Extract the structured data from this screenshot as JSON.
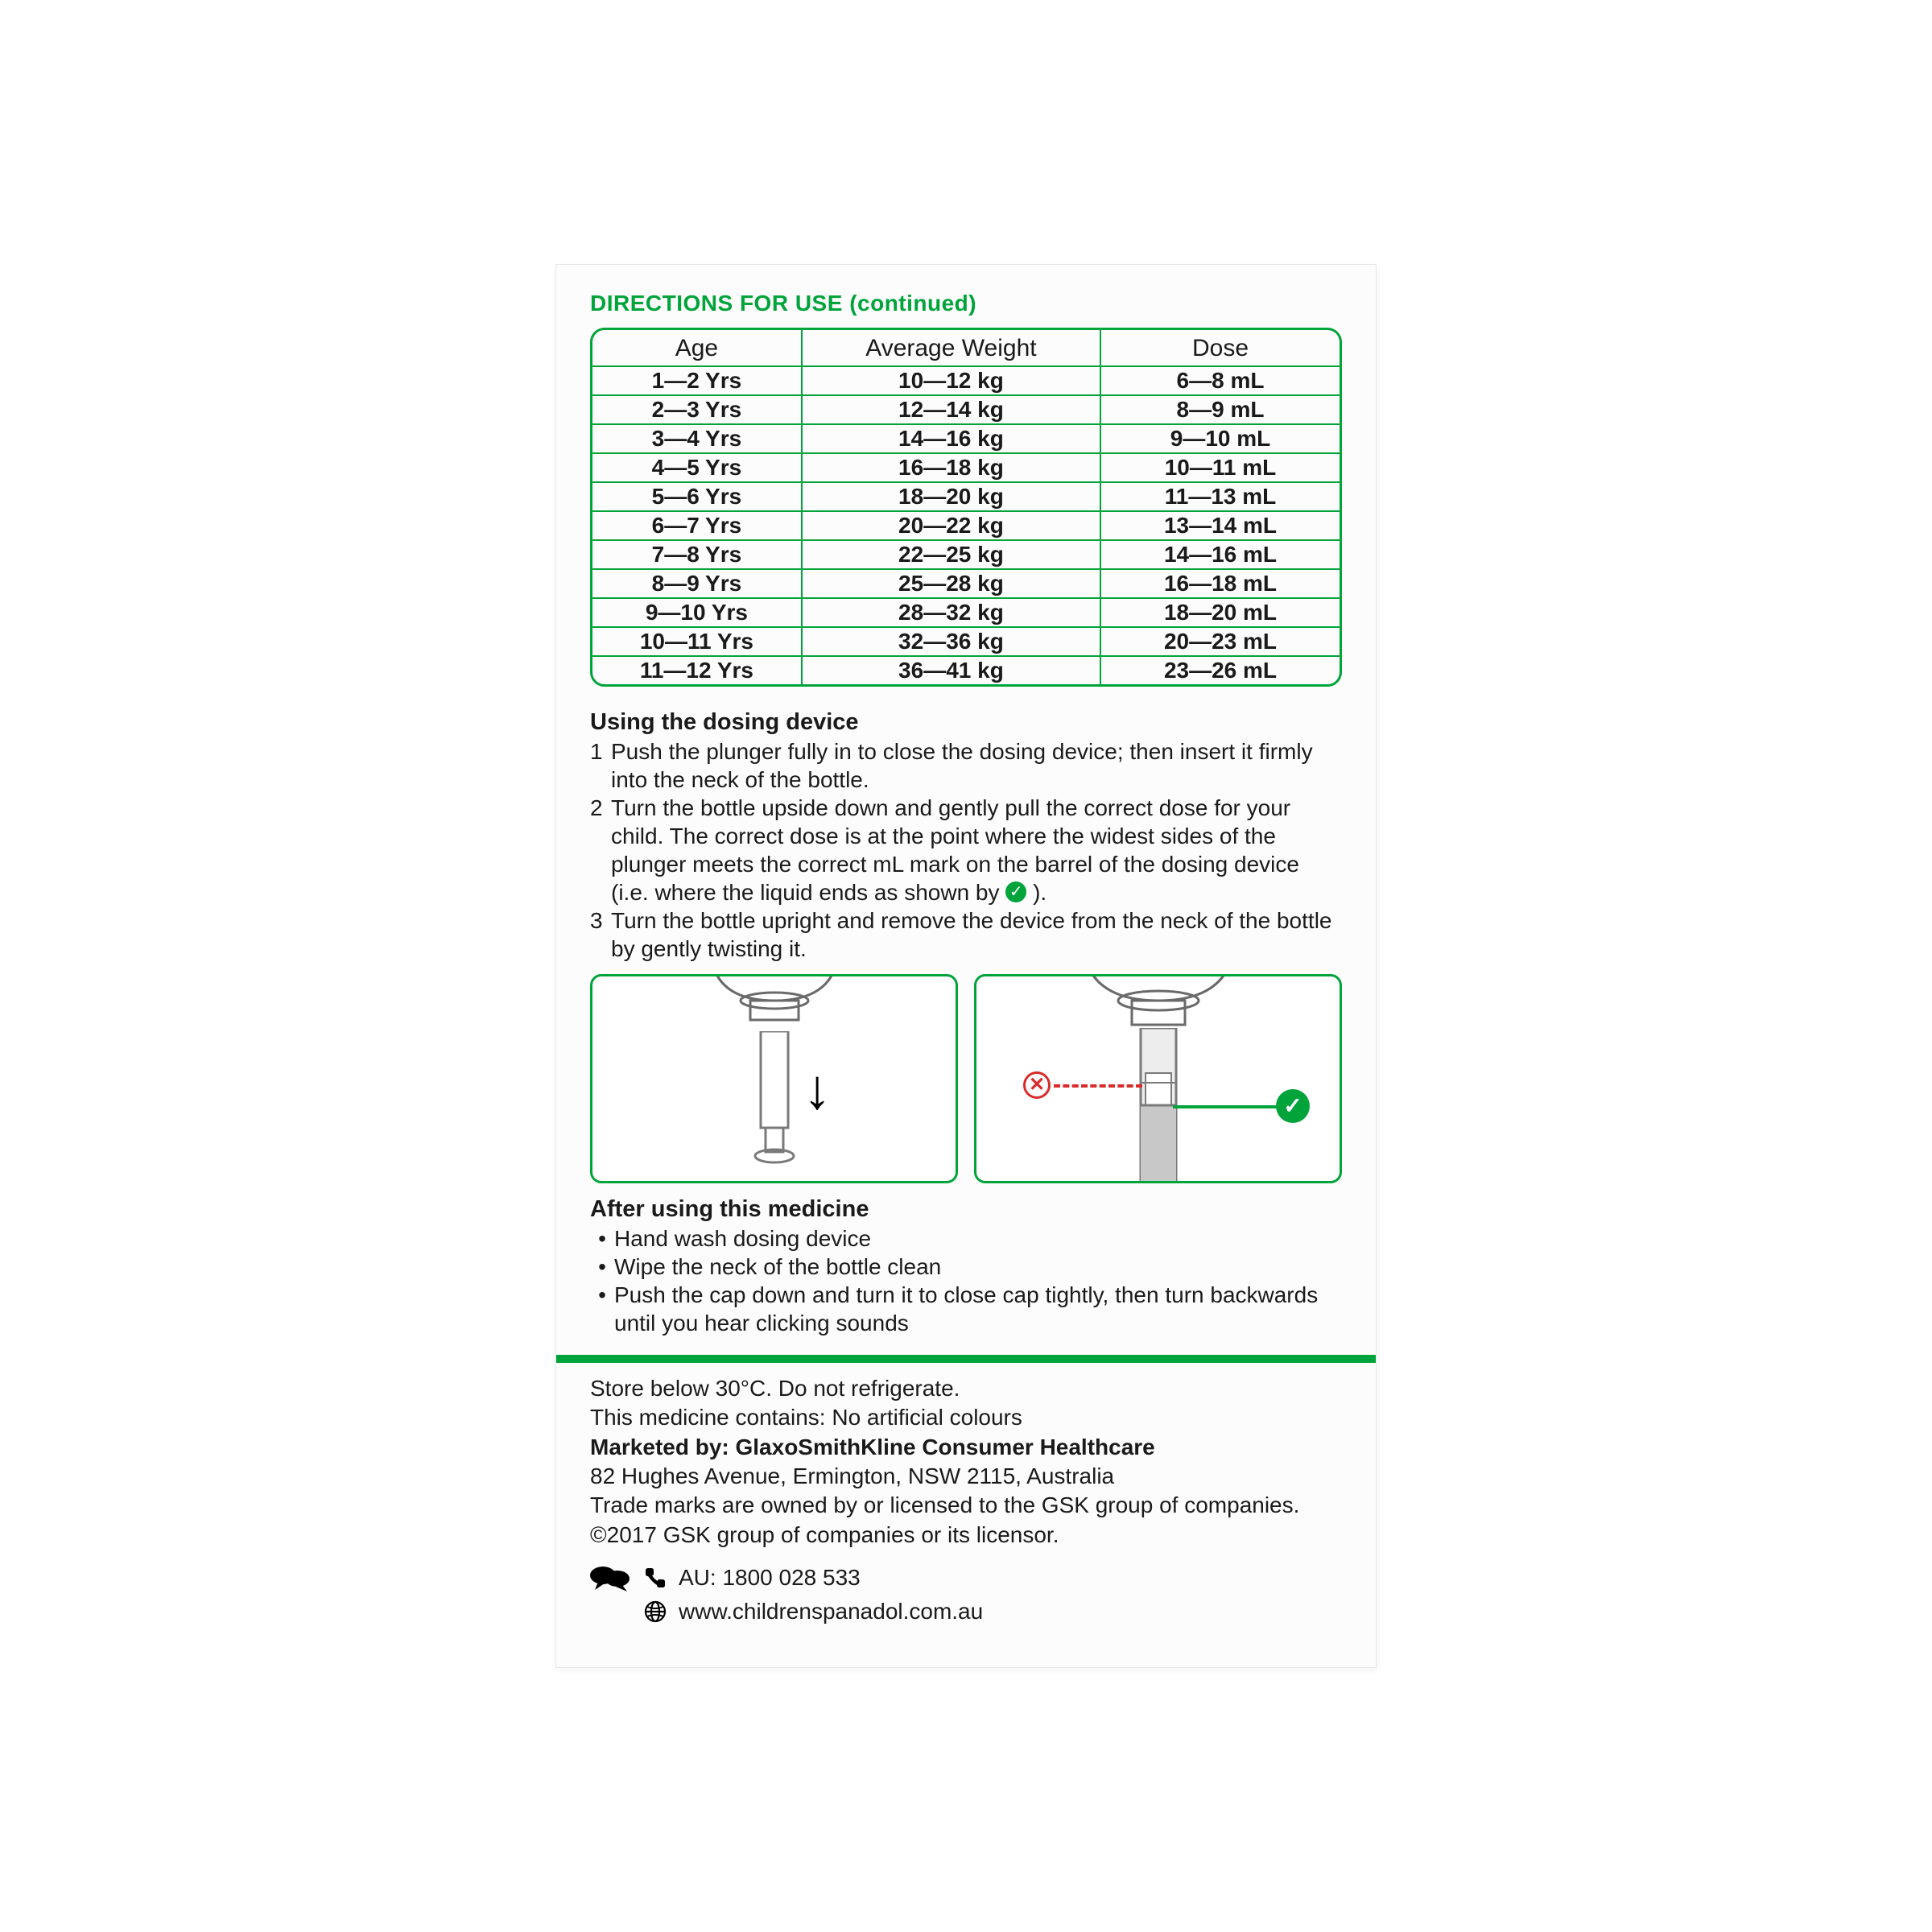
{
  "colors": {
    "accent": "#00a43a",
    "text": "#1a1a1a",
    "error": "#d92b2b",
    "background": "#ffffff",
    "panel": "#fcfcfc"
  },
  "title": "DIRECTIONS FOR USE (continued)",
  "table": {
    "columns": [
      "Age",
      "Average Weight",
      "Dose"
    ],
    "rows": [
      [
        "1—2 Yrs",
        "10—12 kg",
        "6—8 mL"
      ],
      [
        "2—3 Yrs",
        "12—14 kg",
        "8—9 mL"
      ],
      [
        "3—4 Yrs",
        "14—16 kg",
        "9—10 mL"
      ],
      [
        "4—5 Yrs",
        "16—18 kg",
        "10—11 mL"
      ],
      [
        "5—6 Yrs",
        "18—20 kg",
        "11—13 mL"
      ],
      [
        "6—7 Yrs",
        "20—22 kg",
        "13—14 mL"
      ],
      [
        "7—8 Yrs",
        "22—25 kg",
        "14—16 mL"
      ],
      [
        "8—9 Yrs",
        "25—28 kg",
        "16—18 mL"
      ],
      [
        "9—10 Yrs",
        "28—32 kg",
        "18—20 mL"
      ],
      [
        "10—11 Yrs",
        "32—36 kg",
        "20—23 mL"
      ],
      [
        "11—12 Yrs",
        "36—41 kg",
        "23—26 mL"
      ]
    ],
    "col_widths_pct": [
      28,
      40,
      32
    ],
    "border_color": "#00a43a",
    "border_width": 3,
    "border_radius": 18,
    "header_fontsize": 30,
    "cell_fontsize": 28,
    "cell_fontweight": "bold"
  },
  "using_heading": "Using the dosing device",
  "steps": [
    "Push the plunger fully in to close the dosing device; then insert it firmly into the neck of the bottle.",
    "Turn the bottle upside down and gently pull the correct dose for your child. The correct dose is at the point where the widest sides of the plunger meets the correct mL mark on the barrel of the dosing device (i.e. where the liquid ends as shown by",
    "Turn the bottle upright and remove the device from the neck of the bottle by gently twisting it."
  ],
  "step2_tail": ").",
  "diagrams": {
    "type": "illustration",
    "panel_border_color": "#00a43a",
    "panel_border_width": 3,
    "panel_border_radius": 14,
    "left": {
      "arrow": "↓",
      "arrow_color": "#000000"
    },
    "right": {
      "x_color": "#d92b2b",
      "check_color": "#00a43a",
      "dash_color": "#d92b2b",
      "line_color": "#00a43a"
    }
  },
  "after_heading": "After using this medicine",
  "after_bullets": [
    "Hand wash dosing device",
    "Wipe the neck of the bottle clean",
    "Push the cap down and turn it to close cap tightly, then turn backwards until you hear clicking sounds"
  ],
  "footer": {
    "storage": "Store below 30°C. Do not refrigerate.",
    "contains": "This medicine contains: No artificial colours",
    "marketed_label": "Marketed by: ",
    "marketed_by": "GlaxoSmithKline Consumer Healthcare",
    "address": "82 Hughes Avenue, Ermington, NSW 2115, Australia",
    "trademark": "Trade marks are owned by or licensed to the GSK group of companies.",
    "copyright": "©2017 GSK group of companies or its licensor.",
    "phone_label": "AU: 1800 028 533",
    "website": "www.childrenspanadol.com.au"
  }
}
